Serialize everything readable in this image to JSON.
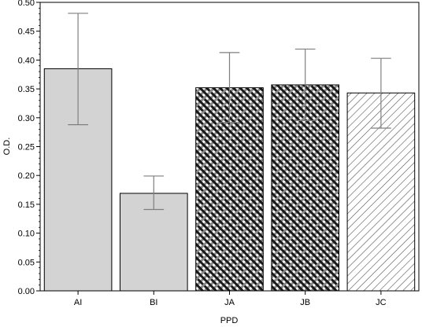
{
  "chart_data": {
    "type": "bar",
    "xlabel": "PPD",
    "ylabel": "O.D.",
    "ylim": [
      0,
      0.5
    ],
    "yticks": [
      "0.00",
      "0.05",
      "0.10",
      "0.15",
      "0.20",
      "0.25",
      "0.30",
      "0.35",
      "0.40",
      "0.45",
      "0.50"
    ],
    "categories": [
      "AI",
      "BI",
      "JA",
      "JB",
      "JC"
    ],
    "values": [
      0.385,
      0.169,
      0.352,
      0.357,
      0.343
    ],
    "error_bars": [
      {
        "low": 0.288,
        "high": 0.481
      },
      {
        "low": 0.141,
        "high": 0.199
      },
      {
        "low": 0.292,
        "high": 0.413
      },
      {
        "low": 0.295,
        "high": 0.419
      },
      {
        "low": 0.282,
        "high": 0.403
      }
    ],
    "fills": [
      "solid-gray",
      "solid-gray",
      "checker",
      "checker",
      "diagonal-hatch"
    ],
    "colors": {
      "bar_fill": "#d3d3d3",
      "bar_stroke": "#000000",
      "error_bar": "#7f7f7f",
      "check_dark": "#1a1a1a",
      "check_light": "#888888",
      "hatch": "#555555"
    }
  }
}
